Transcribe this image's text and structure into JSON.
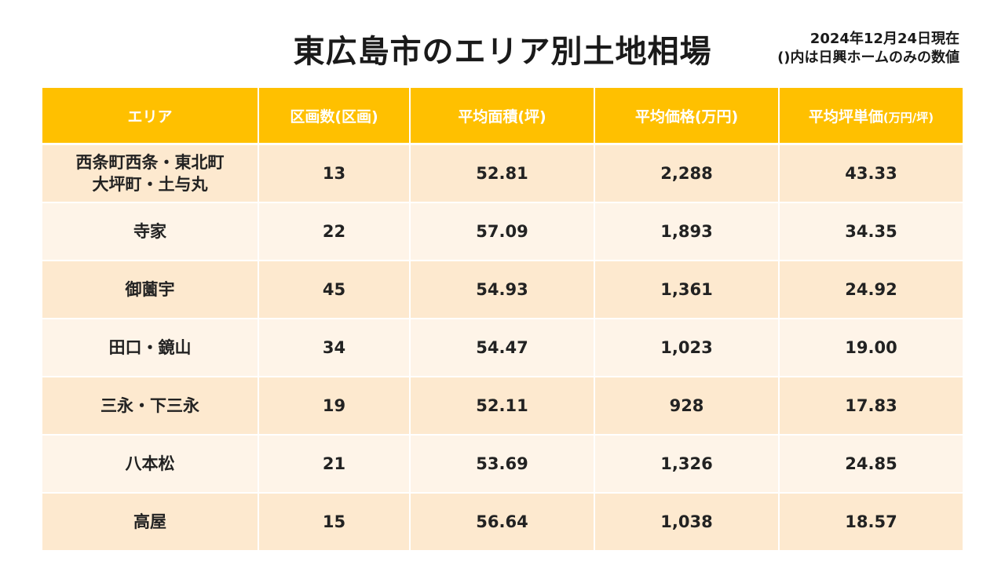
{
  "title": "東広島市のエリア別土地相場",
  "note": {
    "date": "2024年12月24日現在",
    "remark": "()内は日興ホームのみの数値"
  },
  "table": {
    "headers": {
      "area": "エリア",
      "lots": "区画数(区画)",
      "avg_size": "平均面積(坪)",
      "avg_price": "平均価格(万円)",
      "unit_price_main": "平均坪単価",
      "unit_price_unit": "(万円/坪)"
    },
    "rows": [
      {
        "area_line1": "西条町西条・東北町",
        "area_line2": "大坪町・土与丸",
        "lots": "13",
        "avg_size": "52.81",
        "avg_price": "2,288",
        "unit_price": "43.33"
      },
      {
        "area_line1": "寺家",
        "area_line2": "",
        "lots": "22",
        "avg_size": "57.09",
        "avg_price": "1,893",
        "unit_price": "34.35"
      },
      {
        "area_line1": "御薗宇",
        "area_line2": "",
        "lots": "45",
        "avg_size": "54.93",
        "avg_price": "1,361",
        "unit_price": "24.92"
      },
      {
        "area_line1": "田口・鏡山",
        "area_line2": "",
        "lots": "34",
        "avg_size": "54.47",
        "avg_price": "1,023",
        "unit_price": "19.00"
      },
      {
        "area_line1": "三永・下三永",
        "area_line2": "",
        "lots": "19",
        "avg_size": "52.11",
        "avg_price": "928",
        "unit_price": "17.83"
      },
      {
        "area_line1": "八本松",
        "area_line2": "",
        "lots": "21",
        "avg_size": "53.69",
        "avg_price": "1,326",
        "unit_price": "24.85"
      },
      {
        "area_line1": "高屋",
        "area_line2": "",
        "lots": "15",
        "avg_size": "56.64",
        "avg_price": "1,038",
        "unit_price": "18.57"
      }
    ]
  }
}
